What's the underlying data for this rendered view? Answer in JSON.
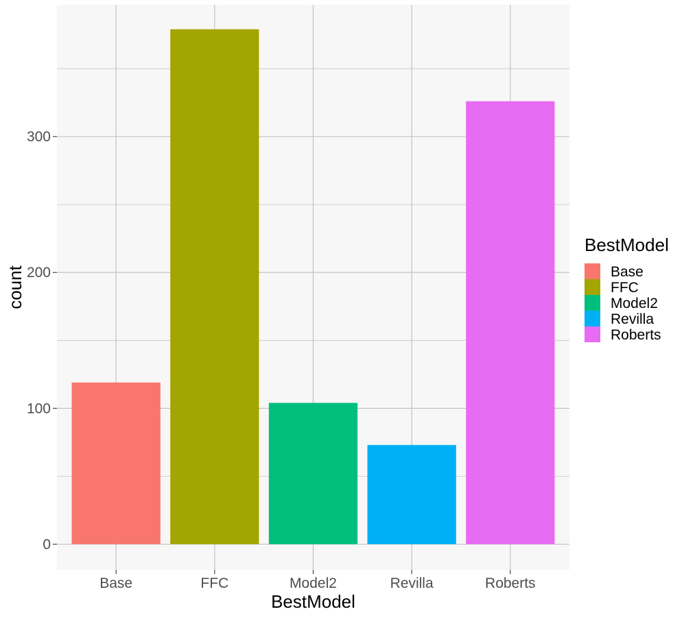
{
  "chart_data": {
    "type": "bar",
    "categories": [
      "Base",
      "FFC",
      "Model2",
      "Revilla",
      "Roberts"
    ],
    "values": [
      119,
      379,
      104,
      73,
      326
    ],
    "colors": [
      "#F8766D",
      "#A3A500",
      "#00BF7D",
      "#00B0F6",
      "#E76BF3"
    ],
    "xlabel": "BestModel",
    "ylabel": "count",
    "ylim": [
      -19,
      397
    ],
    "yticks": [
      0,
      100,
      200,
      300
    ],
    "y_minor_ticks": [
      50,
      150,
      250,
      350
    ],
    "grid": true,
    "panel_background": "#F7F7F7",
    "grid_color": "#BDBDBD",
    "legend": {
      "title": "BestModel",
      "placement": "right",
      "items": [
        "Base",
        "FFC",
        "Model2",
        "Revilla",
        "Roberts"
      ]
    }
  }
}
